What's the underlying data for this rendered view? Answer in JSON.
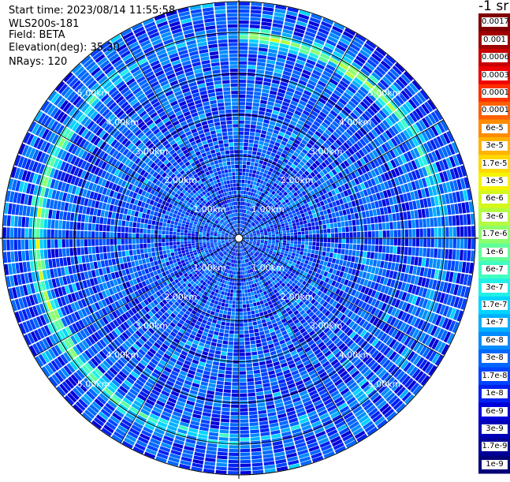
{
  "header": {
    "start_time": "Start time: 2023/08/14 11:55:58",
    "instrument": "WLS200s-181",
    "field": "Field: BETA",
    "elevation": "Elevation(deg): 35.30",
    "nrays": "NRays: 120"
  },
  "colorbar": {
    "unit": "-1 sr",
    "labels": [
      "0.0017",
      "0.001",
      "0.0006",
      "0.0003",
      "0.00017",
      "0.0001",
      "6e-5",
      "3e-5",
      "1.7e-5",
      "1e-5",
      "6e-6",
      "3e-6",
      "1.7e-6",
      "1e-6",
      "6e-7",
      "3e-7",
      "1.7e-7",
      "1e-7",
      "6e-8",
      "3e-8",
      "1.7e-8",
      "1e-8",
      "6e-9",
      "3e-9",
      "1.7e-9",
      "1e-9"
    ],
    "colors": [
      "#800000",
      "#a00000",
      "#c80000",
      "#f00000",
      "#ff3000",
      "#ff6000",
      "#ff8c00",
      "#ffb400",
      "#ffd800",
      "#f4f400",
      "#d4f81c",
      "#b4fc40",
      "#8cff6c",
      "#60ff98",
      "#40ffc0",
      "#20f0e8",
      "#00d4ff",
      "#00b0ff",
      "#008cff",
      "#0068ff",
      "#0044ff",
      "#0020f0",
      "#0000d8",
      "#0000b8",
      "#000098",
      "#000078"
    ]
  },
  "chart_data": {
    "type": "heatmap",
    "projection": "polar",
    "field": "BETA",
    "elevation_deg": 35.3,
    "n_rays": 120,
    "range_rings_km": [
      1,
      2,
      3,
      4,
      5
    ],
    "ring_labels": [
      "1.00km",
      "2.00km",
      "3.00km",
      "4.00km",
      "5.00km"
    ],
    "max_range_km": 5.75,
    "scale": "log",
    "value_range": [
      1e-09,
      0.0017
    ],
    "features": [
      {
        "desc": "enhanced backscatter ring",
        "range_km": 4.9,
        "value": 1.7e-06
      },
      {
        "desc": "background",
        "value": 1.7e-08
      }
    ]
  }
}
